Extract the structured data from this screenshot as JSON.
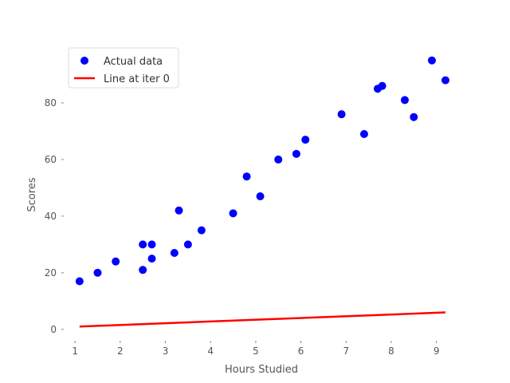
{
  "chart_data": {
    "type": "scatter",
    "xlabel": "Hours Studied",
    "ylabel": "Scores",
    "xlim": [
      0.75,
      9.5
    ],
    "ylim": [
      -4,
      100
    ],
    "xticks": [
      1,
      2,
      3,
      4,
      5,
      6,
      7,
      8,
      9
    ],
    "yticks": [
      0,
      20,
      40,
      60,
      80
    ],
    "grid": false,
    "legend_position": "top-left",
    "series": [
      {
        "name": "Actual data",
        "kind": "scatter",
        "color": "#0000ff",
        "points": [
          [
            1.1,
            17
          ],
          [
            1.5,
            20
          ],
          [
            1.9,
            24
          ],
          [
            2.5,
            21
          ],
          [
            2.5,
            30
          ],
          [
            2.7,
            25
          ],
          [
            2.7,
            30
          ],
          [
            3.2,
            27
          ],
          [
            3.3,
            42
          ],
          [
            3.5,
            30
          ],
          [
            3.8,
            35
          ],
          [
            4.5,
            41
          ],
          [
            4.8,
            54
          ],
          [
            5.1,
            47
          ],
          [
            5.5,
            60
          ],
          [
            5.9,
            62
          ],
          [
            6.1,
            67
          ],
          [
            6.9,
            76
          ],
          [
            7.4,
            69
          ],
          [
            7.7,
            85
          ],
          [
            7.8,
            86
          ],
          [
            8.3,
            81
          ],
          [
            8.5,
            75
          ],
          [
            8.9,
            95
          ],
          [
            9.2,
            88
          ]
        ]
      },
      {
        "name": "Line at iter 0",
        "kind": "line",
        "color": "#ff0000",
        "points": [
          [
            1.1,
            1.0
          ],
          [
            9.2,
            6.0
          ]
        ]
      }
    ]
  }
}
